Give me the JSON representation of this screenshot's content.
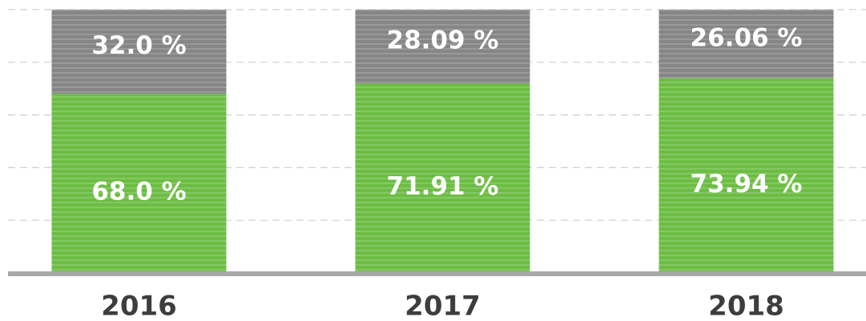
{
  "chart_data": {
    "type": "stacked_bar",
    "categories": [
      "2016",
      "2017",
      "2018"
    ],
    "series": [
      {
        "color": "#6dbd45",
        "values": [
          68.0,
          71.91,
          73.94
        ],
        "value_labels": [
          "68.0 %",
          "71.91 %",
          "73.94 %"
        ]
      },
      {
        "color": "#868686",
        "values": [
          32.0,
          28.09,
          26.06
        ],
        "value_labels": [
          "32.0 %",
          "28.09 %",
          "26.06 %"
        ]
      }
    ],
    "ylim": [
      0,
      100
    ],
    "yticks": [
      0,
      20,
      40,
      60,
      80,
      100
    ],
    "grid": true
  }
}
